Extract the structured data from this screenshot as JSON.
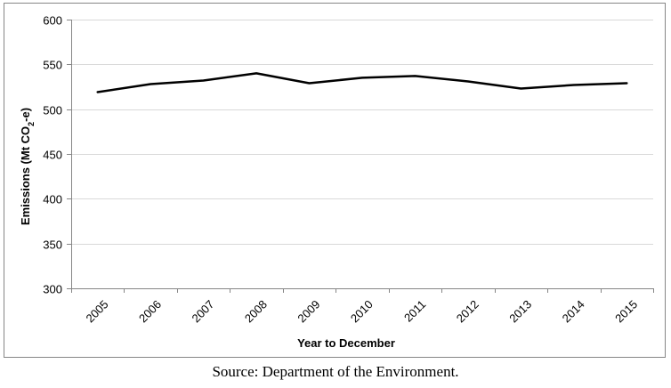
{
  "chart_data": {
    "type": "line",
    "title": "",
    "xlabel": "Year to December",
    "ylabel_parts": {
      "main": "Emissions (Mt CO",
      "sub": "2",
      "tail": "-e)"
    },
    "categories": [
      "2005",
      "2006",
      "2007",
      "2008",
      "2009",
      "2010",
      "2011",
      "2012",
      "2013",
      "2014",
      "2015"
    ],
    "series": [
      {
        "values": [
          519,
          528,
          532,
          540,
          529,
          535,
          537,
          531,
          523,
          527,
          529
        ],
        "color": "#000000"
      }
    ],
    "ylim": [
      300,
      600
    ],
    "yticks": [
      300,
      350,
      400,
      450,
      500,
      550,
      600
    ],
    "grid": true,
    "legend": "none"
  },
  "caption": {
    "source": "Source:  Department of the Environment."
  },
  "colors": {
    "gridline": "#d9d9d9",
    "axis": "#868686",
    "frame": "#868686",
    "line": "#000000"
  }
}
